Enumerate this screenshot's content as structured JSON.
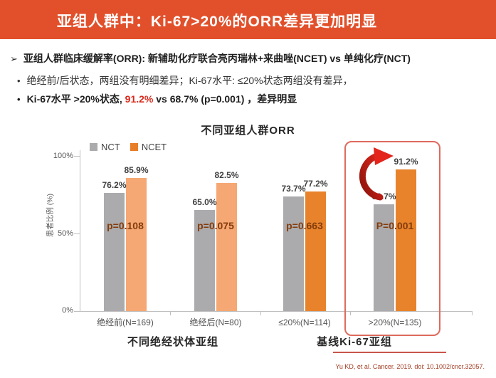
{
  "banner": {
    "title": "亚组人群中：Ki-67>20%的ORR差异更加明显",
    "bg_color": "#E1502B"
  },
  "bullets": {
    "marker1": "➢",
    "marker2": "•",
    "line1": "亚组人群临床缓解率(ORR): 新辅助化疗联合亮丙瑞林+来曲唑(NCET) vs 单纯化疗(NCT)",
    "line2": "绝经前/后状态，两组没有明细差异；Ki-67水平: ≤20%状态两组没有差异，",
    "line3_prefix": "Ki-67水平 >20%状态, ",
    "line3_highlight": "91.2%",
    "line3_suffix": " vs 68.7% (p=0.001) ，差异明显"
  },
  "chart_data": {
    "type": "bar",
    "title": "不同亚组人群ORR",
    "ylabel": "患者比例 (%)",
    "ylim": [
      0,
      100
    ],
    "yticks": [
      "0%",
      "50%",
      "100%"
    ],
    "grid": false,
    "legend_position": "top-left",
    "legend": [
      {
        "name": "NCT",
        "color": "#ABAAAC"
      },
      {
        "name": "NCET",
        "color": "#E87E28"
      }
    ],
    "categories": [
      "绝经前(N=169)",
      "绝经后(N=80)",
      "≤20%(N=114)",
      ">20%(N=135)"
    ],
    "series": [
      {
        "name": "NCT",
        "color": "#ABAAAC",
        "values": [
          76.2,
          65.0,
          73.7,
          68.7
        ]
      },
      {
        "name": "NCET",
        "values": [
          85.9,
          82.5,
          77.2,
          91.2
        ]
      }
    ],
    "ncet_colors": [
      "#F5A873",
      "#F5A873",
      "#E8832C",
      "#E8832C"
    ],
    "value_labels": [
      [
        "76.2%",
        "85.9%"
      ],
      [
        "65.0%",
        "82.5%"
      ],
      [
        "73.7%",
        "77.2%"
      ],
      [
        "68.7%",
        "91.2%"
      ]
    ],
    "p_values": [
      "p=0.108",
      "p=0.075",
      "p=0.663",
      "P=0.001"
    ],
    "p_value_color": "#843C0C",
    "group_axis_labels": [
      "不同绝经状体亚组",
      "基线Ki-67亚组"
    ],
    "highlight_group_index": 3,
    "highlight_color": "#DE6B5E"
  },
  "citation": "Yu KD, et al. Cancer. 2019. doi: 10.1002/cncr.32057."
}
